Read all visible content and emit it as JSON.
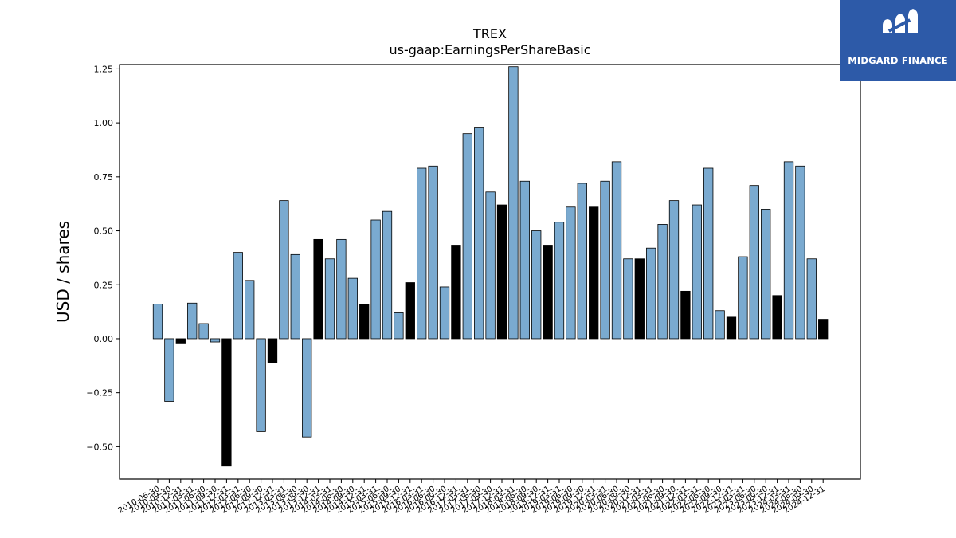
{
  "colors": {
    "bar_default": "#7aaad0",
    "bar_highlight": "#000000",
    "bar_edge": "#000000",
    "logo_bg": "#2d5aa8",
    "logo_fg": "#ffffff"
  },
  "logo": {
    "text": "MIDGARD FINANCE",
    "icon": "midgard-logo-icon"
  },
  "chart_data": {
    "type": "bar",
    "title": "TREX",
    "subtitle": "us-gaap:EarningsPerShareBasic",
    "ylabel": "USD / shares",
    "xlabel": "",
    "ylim": [
      -0.65,
      1.27
    ],
    "yticks": [
      "1.25",
      "1.00",
      "0.75",
      "0.50",
      "0.25",
      "0.00",
      "−0.25",
      "−0.50"
    ],
    "ytick_values": [
      1.25,
      1.0,
      0.75,
      0.5,
      0.25,
      0.0,
      -0.25,
      -0.5
    ],
    "grid": false,
    "categories": [
      "2010-06-30",
      "2010-09-30",
      "2010-12-31",
      "2011-03-31",
      "2011-06-30",
      "2011-09-30",
      "2011-12-31",
      "2012-03-31",
      "2012-06-30",
      "2012-09-30",
      "2012-12-31",
      "2013-03-31",
      "2013-06-30",
      "2013-09-30",
      "2013-12-31",
      "2014-03-31",
      "2014-06-30",
      "2014-09-30",
      "2014-12-31",
      "2015-03-31",
      "2015-06-30",
      "2015-09-30",
      "2015-12-31",
      "2016-03-31",
      "2016-06-30",
      "2016-09-30",
      "2016-12-31",
      "2017-03-31",
      "2017-06-30",
      "2017-09-30",
      "2017-12-31",
      "2018-03-31",
      "2018-06-30",
      "2018-09-30",
      "2018-12-31",
      "2019-03-31",
      "2019-06-30",
      "2019-09-30",
      "2019-12-31",
      "2020-03-31",
      "2020-06-30",
      "2020-09-30",
      "2020-12-31",
      "2021-03-31",
      "2021-06-30",
      "2021-09-30",
      "2021-12-31",
      "2022-03-31",
      "2022-06-30",
      "2022-09-30",
      "2022-12-31",
      "2023-03-31",
      "2023-06-30",
      "2023-09-30",
      "2023-12-31",
      "2024-03-31",
      "2024-06-30",
      "2024-09-30",
      "2024-12-31"
    ],
    "values": [
      0.16,
      -0.29,
      -0.02,
      0.165,
      0.07,
      -0.015,
      -0.59,
      0.4,
      0.27,
      -0.43,
      -0.11,
      0.64,
      0.39,
      -0.455,
      0.46,
      0.37,
      0.46,
      0.28,
      0.16,
      0.55,
      0.59,
      0.12,
      0.26,
      0.79,
      0.8,
      0.24,
      0.43,
      0.95,
      0.98,
      0.68,
      0.62,
      1.26,
      0.73,
      0.5,
      0.43,
      0.54,
      0.61,
      0.72,
      0.61,
      0.73,
      0.82,
      0.37,
      0.37,
      0.42,
      0.53,
      0.64,
      0.22,
      0.62,
      0.79,
      0.13,
      0.1,
      0.38,
      0.71,
      0.6,
      0.2,
      0.82,
      0.8,
      0.37,
      0.09
    ],
    "highlight": [
      false,
      false,
      true,
      false,
      false,
      false,
      true,
      false,
      false,
      false,
      true,
      false,
      false,
      false,
      true,
      false,
      false,
      false,
      true,
      false,
      false,
      false,
      true,
      false,
      false,
      false,
      true,
      false,
      false,
      false,
      true,
      false,
      false,
      false,
      true,
      false,
      false,
      false,
      true,
      false,
      false,
      false,
      true,
      false,
      false,
      false,
      true,
      false,
      false,
      false,
      true,
      false,
      false,
      false,
      true,
      false,
      false,
      false,
      true
    ]
  }
}
